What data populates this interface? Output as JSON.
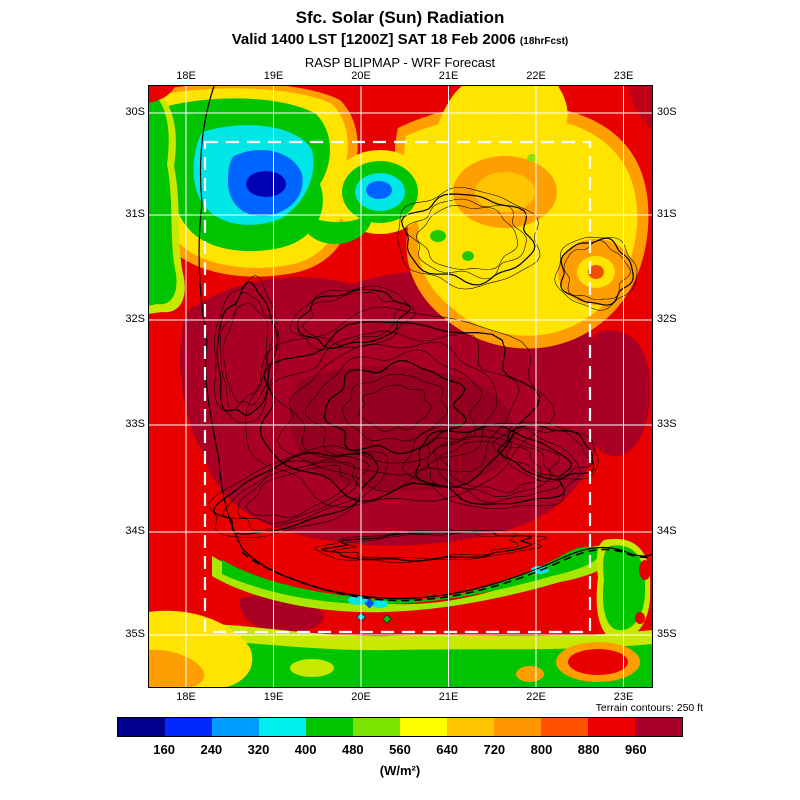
{
  "header": {
    "title": "Sfc. Solar (Sun) Radiation",
    "valid_line": "Valid 1400 LST [1200Z] SAT 18 Feb 2006",
    "fcst_tag": "(18hrFcst)",
    "model_line": "RASP BLIPMAP - WRF Forecast"
  },
  "map": {
    "lon_labels": [
      "18E",
      "19E",
      "20E",
      "21E",
      "22E",
      "23E"
    ],
    "lat_labels": [
      "30S",
      "31S",
      "32S",
      "33S",
      "34S",
      "35S"
    ],
    "terrain_note": "Terrain contours: 250 ft"
  },
  "colorbar": {
    "tick_labels": [
      "160",
      "240",
      "320",
      "400",
      "480",
      "560",
      "640",
      "720",
      "800",
      "880",
      "960"
    ],
    "colors": [
      "#00008C",
      "#0028FF",
      "#009CFF",
      "#00F0F0",
      "#00C400",
      "#7CE400",
      "#FFFF00",
      "#FFC400",
      "#FF9600",
      "#FF5000",
      "#EE0000",
      "#A80028"
    ],
    "units": "(W/m²)"
  },
  "chart_data": {
    "type": "heatmap",
    "title": "Sfc. Solar (Sun) Radiation",
    "units": "W/m²",
    "x_ticks": [
      "18E",
      "19E",
      "20E",
      "21E",
      "22E",
      "23E"
    ],
    "y_ticks": [
      "30S",
      "31S",
      "32S",
      "33S",
      "34S",
      "35S"
    ],
    "scale_boundaries": [
      160,
      240,
      320,
      400,
      480,
      560,
      640,
      720,
      800,
      880,
      960
    ],
    "scale_colors": [
      "#00008C",
      "#0028FF",
      "#009CFF",
      "#00F0F0",
      "#00C400",
      "#7CE400",
      "#FFFF00",
      "#FFC400",
      "#FF9600",
      "#FF5000",
      "#EE0000",
      "#A80028"
    ]
  }
}
